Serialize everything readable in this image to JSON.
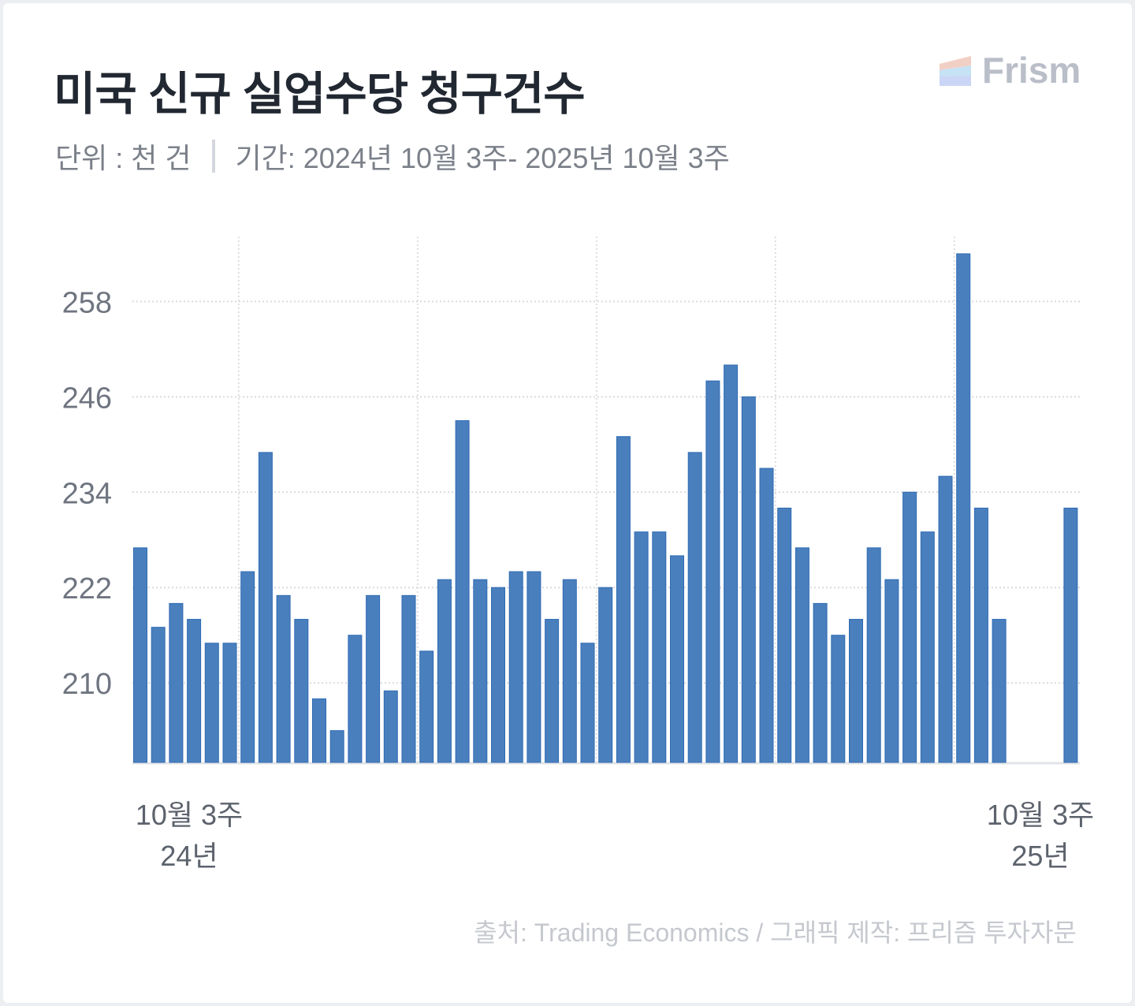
{
  "title": "미국 신규 실업수당 청구건수",
  "subtitle": {
    "unit": "단위 : 천 건",
    "period": "기간: 2024년 10월  3주- 2025년 10월 3주"
  },
  "logo": {
    "text": "Frism"
  },
  "source": "출처: Trading Economics / 그래픽 제작: 프리즘 투자자문",
  "chart_data": {
    "type": "bar",
    "title": "미국 신규 실업수당 청구건수",
    "xlabel": "",
    "ylabel": "천 건",
    "ylim": [
      200,
      266
    ],
    "yticks": [
      210,
      222,
      234,
      246,
      258
    ],
    "grid": true,
    "bar_color": "#4a7fbe",
    "x_labels": [
      {
        "index": 0,
        "week": "10월 3주",
        "year": "24년"
      },
      {
        "index": 52,
        "week": "10월 3주",
        "year": "25년"
      }
    ],
    "values": [
      227,
      217,
      220,
      218,
      215,
      215,
      224,
      239,
      221,
      218,
      208,
      204,
      216,
      221,
      209,
      221,
      214,
      223,
      243,
      223,
      222,
      224,
      224,
      218,
      223,
      215,
      222,
      241,
      229,
      229,
      226,
      239,
      248,
      250,
      246,
      237,
      232,
      227,
      220,
      216,
      218,
      227,
      223,
      234,
      229,
      236,
      264,
      232,
      218,
      null,
      null,
      null,
      232
    ]
  }
}
